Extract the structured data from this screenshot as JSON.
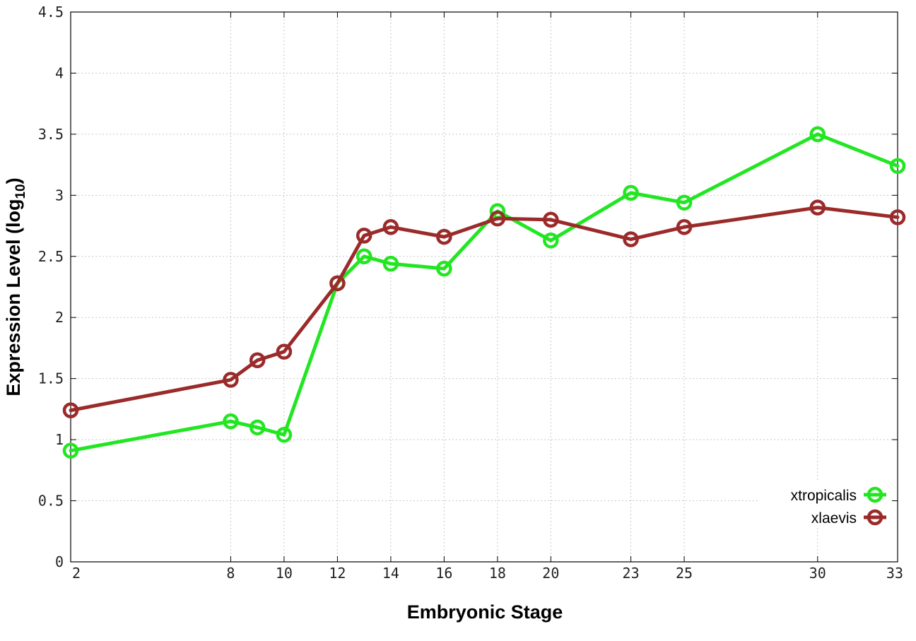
{
  "chart_data": {
    "type": "line",
    "title": "",
    "xlabel": "Embryonic Stage",
    "ylabel": {
      "main": "Expression Level (log",
      "sub": "10",
      "close": ")"
    },
    "x_ticks": [
      2,
      8,
      10,
      12,
      14,
      16,
      18,
      20,
      23,
      25,
      30,
      33
    ],
    "y_ticks": [
      0,
      0.5,
      1,
      1.5,
      2,
      2.5,
      3,
      3.5,
      4,
      4.5
    ],
    "y_tick_labels": [
      "0",
      "0.5",
      "1",
      "1.5",
      "2",
      "2.5",
      "3",
      "3.5",
      "4",
      "4.5"
    ],
    "xlim": [
      2,
      33
    ],
    "ylim": [
      0,
      4.5
    ],
    "grid": true,
    "legend_position": "bottom-right",
    "x": [
      2,
      8,
      9,
      10,
      12,
      13,
      14,
      16,
      18,
      20,
      23,
      25,
      30,
      33
    ],
    "series": [
      {
        "name": "xtropicalis",
        "color": "#22e622",
        "values": [
          0.91,
          1.15,
          1.1,
          1.04,
          2.28,
          2.5,
          2.44,
          2.4,
          2.87,
          2.63,
          3.02,
          2.94,
          3.5,
          3.24
        ]
      },
      {
        "name": "xlaevis",
        "color": "#9b2a2a",
        "values": [
          1.24,
          1.49,
          1.65,
          1.72,
          2.28,
          2.67,
          2.74,
          2.66,
          2.81,
          2.8,
          2.64,
          2.74,
          2.9,
          2.82
        ]
      }
    ]
  }
}
